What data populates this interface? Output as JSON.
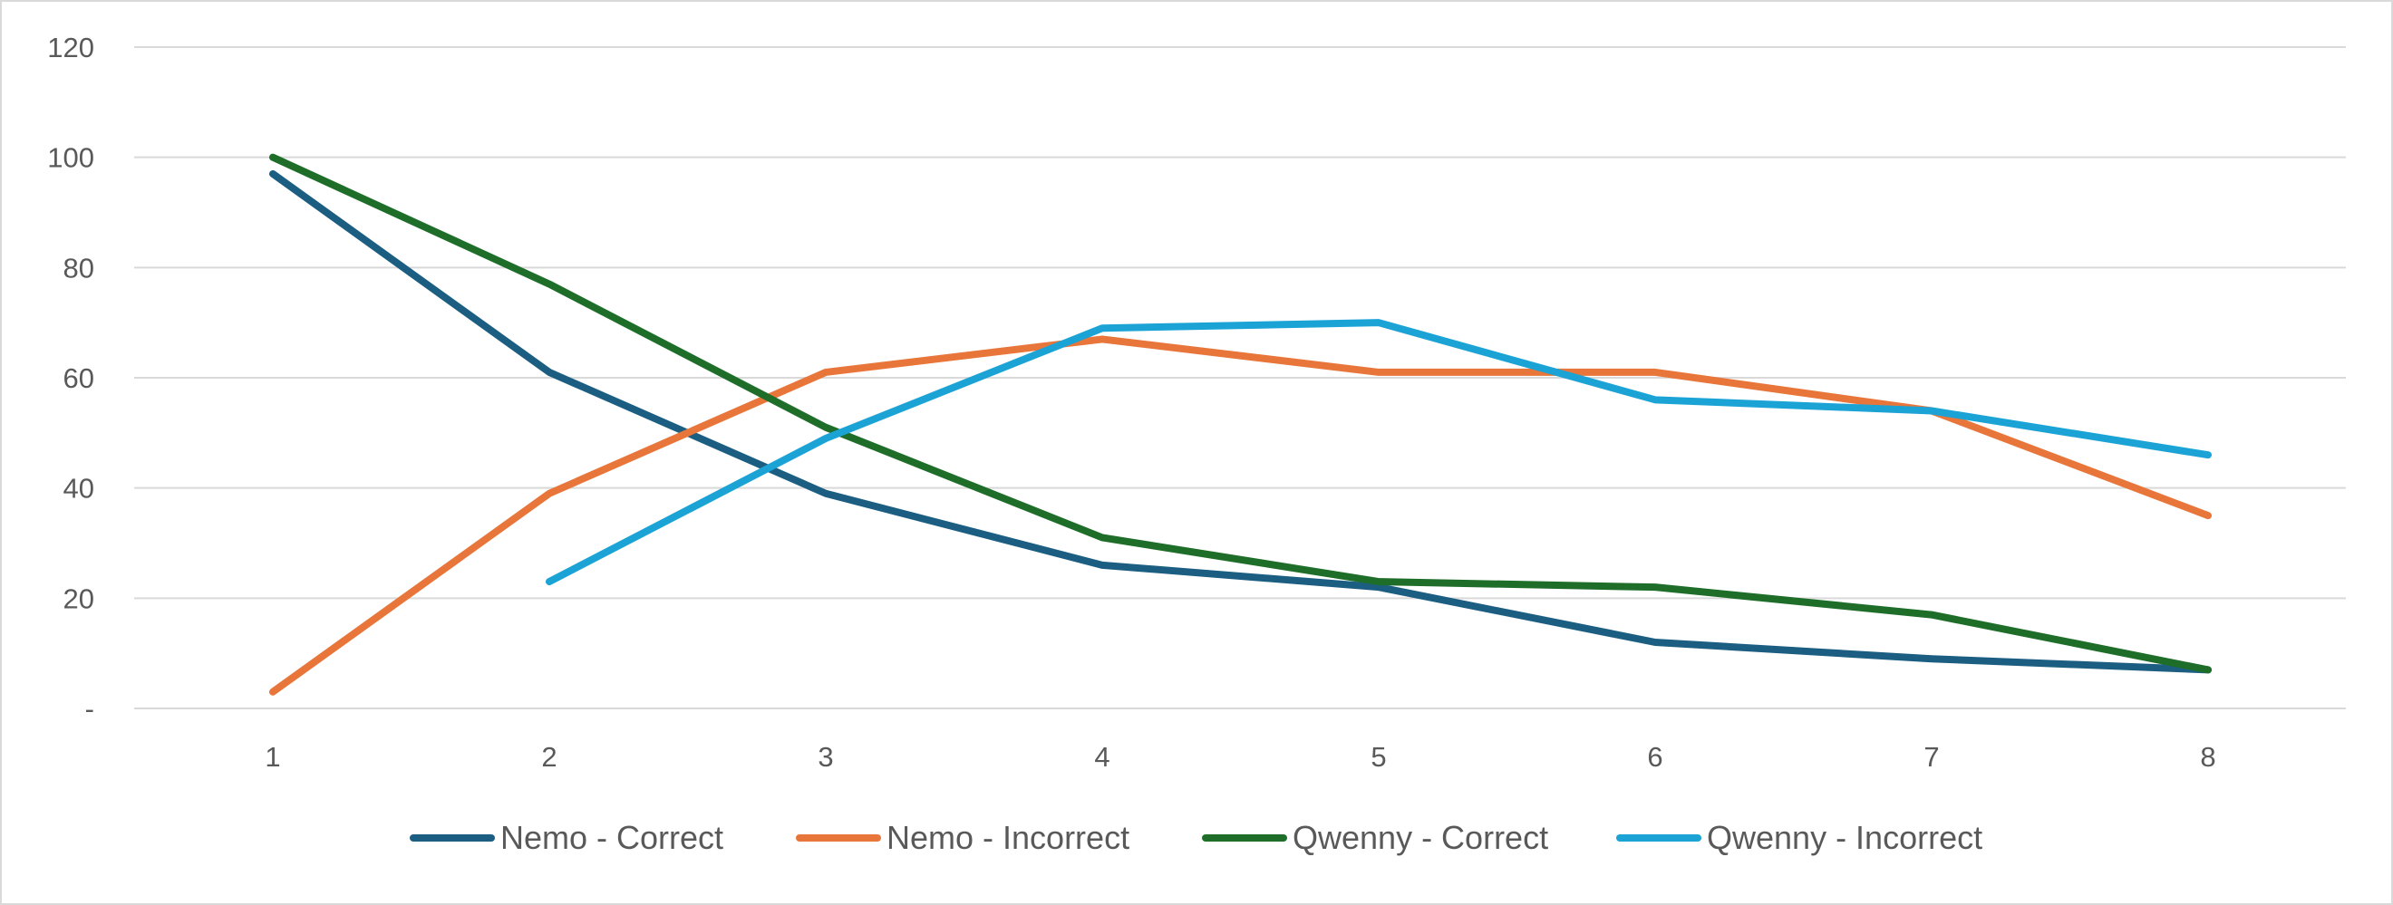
{
  "chart_data": {
    "type": "line",
    "title": "",
    "xlabel": "",
    "ylabel": "",
    "categories": [
      "1",
      "2",
      "3",
      "4",
      "5",
      "6",
      "7",
      "8"
    ],
    "ylim": [
      0,
      120
    ],
    "y_ticks": [
      0,
      20,
      40,
      60,
      80,
      100,
      120
    ],
    "y_tick_labels": [
      "-",
      "20",
      "40",
      "60",
      "80",
      "100",
      "120"
    ],
    "grid": true,
    "legend_position": "bottom",
    "series": [
      {
        "name": "Nemo - Correct",
        "color": "#1b5e82",
        "values": [
          97,
          61,
          39,
          26,
          22,
          12,
          9,
          7
        ]
      },
      {
        "name": "Nemo - Incorrect",
        "color": "#e8763a",
        "values": [
          3,
          39,
          61,
          67,
          61,
          61,
          54,
          35
        ]
      },
      {
        "name": "Qwenny - Correct",
        "color": "#1e6e2a",
        "values": [
          100,
          77,
          51,
          31,
          23,
          22,
          17,
          7
        ]
      },
      {
        "name": "Qwenny - Incorrect",
        "color": "#1ba3d6",
        "values": [
          null,
          23,
          49,
          69,
          70,
          56,
          54,
          46
        ]
      }
    ]
  }
}
